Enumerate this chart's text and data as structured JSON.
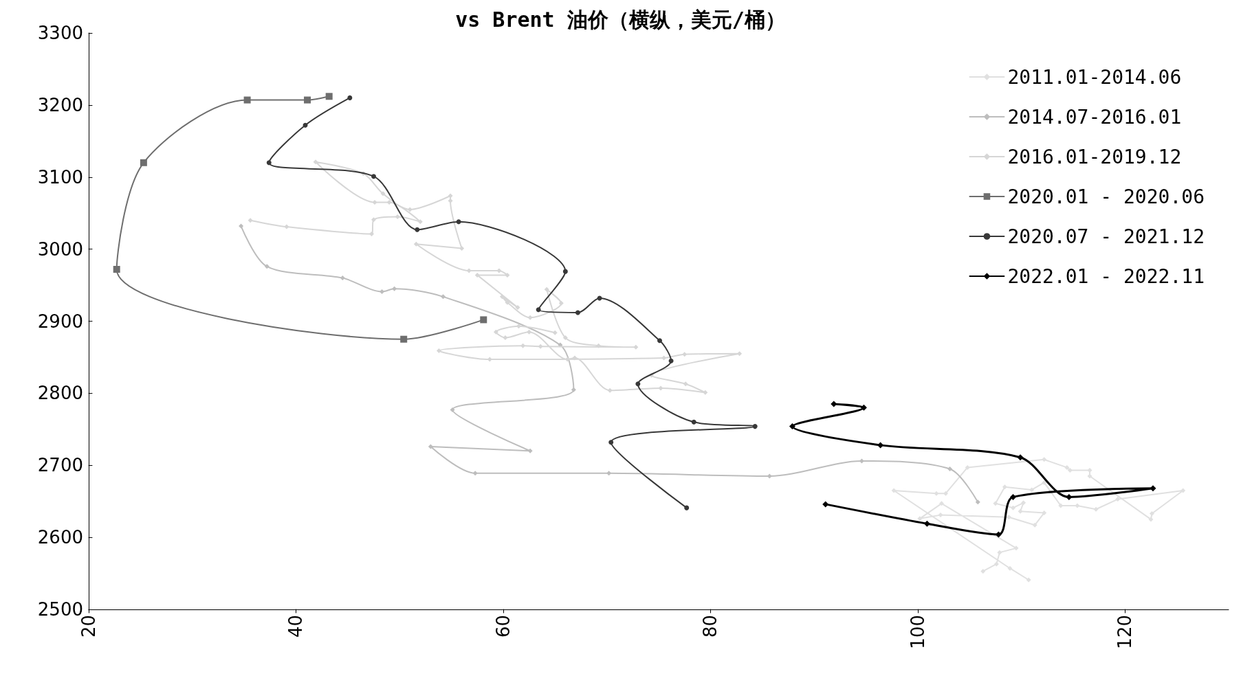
{
  "chart_data": {
    "type": "line",
    "title": "vs Brent 油价（横纵，美元/桶）",
    "xlim": [
      20,
      130
    ],
    "xticks": [
      20,
      40,
      60,
      80,
      100,
      120
    ],
    "ylim": [
      2500,
      3300
    ],
    "yticks": [
      2500,
      2600,
      2700,
      2800,
      2900,
      3000,
      3100,
      3200,
      3300
    ],
    "grid": false,
    "legend": "top right",
    "series": [
      {
        "name": "2011.01-2014.06",
        "color": "#e0e0e0",
        "marker": "diamond",
        "x": [
          110.7,
          108.9,
          97.7,
          101.8,
          102.7,
          104.8,
          112.2,
          114.4,
          114.7,
          116.6,
          116.6,
          122.5,
          122.6,
          125.6,
          119.3,
          117.2,
          115.4,
          113.8,
          112.2,
          111.0,
          108.4,
          107.5,
          109.2,
          110.2,
          109.9,
          112.2,
          111.3,
          108.8,
          102.2,
          100.2,
          102.3,
          109.5,
          107.9,
          107.6,
          106.3
        ],
        "values": [
          2541,
          2557,
          2665,
          2661,
          2661,
          2697,
          2708,
          2697,
          2693,
          2693,
          2685,
          2625,
          2633,
          2665,
          2653,
          2639,
          2644,
          2644,
          2676,
          2666,
          2670,
          2647,
          2641,
          2648,
          2636,
          2634,
          2617,
          2628,
          2631,
          2626,
          2647,
          2585,
          2579,
          2563,
          2553
        ]
      },
      {
        "name": "2014.07-2016.01",
        "color": "#bdbdbd",
        "marker": "diamond",
        "x": [
          105.8,
          103.1,
          94.6,
          85.7,
          70.2,
          57.3,
          53.0,
          62.6,
          55.1,
          66.8,
          65.5,
          54.2,
          49.5,
          48.3,
          44.5,
          37.2,
          34.7
        ],
        "values": [
          2649,
          2695,
          2706,
          2685,
          2689,
          2689,
          2726,
          2720,
          2777,
          2805,
          2867,
          2934,
          2945,
          2941,
          2960,
          2976,
          3032
        ]
      },
      {
        "name": "2016.01-2019.12",
        "color": "#d6d6d6",
        "marker": "diamond",
        "x": [
          35.6,
          39.1,
          47.3,
          47.5,
          49.8,
          52.0,
          49.0,
          47.6,
          41.9,
          46.5,
          48.4,
          51.0,
          54.9,
          54.9,
          56.0,
          51.6,
          56.7,
          59.6,
          60.4,
          57.5,
          61.4,
          59.9,
          60.4,
          62.6,
          65.6,
          64.2,
          66.0,
          69.2,
          72.8,
          63.6,
          61.9,
          53.8,
          58.7,
          75.5,
          77.5,
          82.8,
          74.3,
          77.6,
          79.5,
          75.2,
          70.3,
          66.9,
          66.2,
          62.5,
          60.2,
          59.3,
          61.5,
          65.0
        ],
        "values": [
          3040,
          3031,
          3021,
          3041,
          3045,
          3038,
          3065,
          3065,
          3121,
          3105,
          3077,
          3055,
          3074,
          3067,
          3001,
          3007,
          2970,
          2970,
          2964,
          2964,
          2919,
          2934,
          2926,
          2905,
          2925,
          2944,
          2877,
          2866,
          2864,
          2865,
          2866,
          2859,
          2847,
          2849,
          2854,
          2855,
          2825,
          2813,
          2801,
          2807,
          2804,
          2849,
          2847,
          2885,
          2877,
          2885,
          2893,
          2884
        ]
      },
      {
        "name": "2020.01 - 2020.06",
        "color": "#6e6e6e",
        "marker": "square",
        "x": [
          58.1,
          50.4,
          22.7,
          25.3,
          35.3,
          41.1,
          43.2
        ],
        "values": [
          2902,
          2875,
          2972,
          3120,
          3207,
          3207,
          3212
        ]
      },
      {
        "name": "2020.07 - 2021.12",
        "color": "#383838",
        "marker": "circle",
        "x": [
          45.2,
          40.9,
          37.4,
          47.5,
          51.7,
          55.7,
          66.0,
          63.4,
          67.2,
          69.3,
          75.1,
          76.2,
          73.0,
          78.4,
          84.3,
          70.4,
          77.7
        ],
        "values": [
          3210,
          3172,
          3120,
          3101,
          3027,
          3038,
          2969,
          2916,
          2912,
          2932,
          2873,
          2845,
          2813,
          2760,
          2754,
          2732,
          2641
        ]
      },
      {
        "name": "2022.01 - 2022.11",
        "color": "#000000",
        "marker": "diamond",
        "x": [
          91.1,
          100.9,
          107.8,
          109.2,
          122.7,
          114.6,
          109.9,
          96.4,
          87.9,
          94.8,
          91.9
        ],
        "values": [
          2646,
          2619,
          2604,
          2656,
          2668,
          2656,
          2711,
          2728,
          2754,
          2780,
          2785
        ]
      }
    ]
  }
}
